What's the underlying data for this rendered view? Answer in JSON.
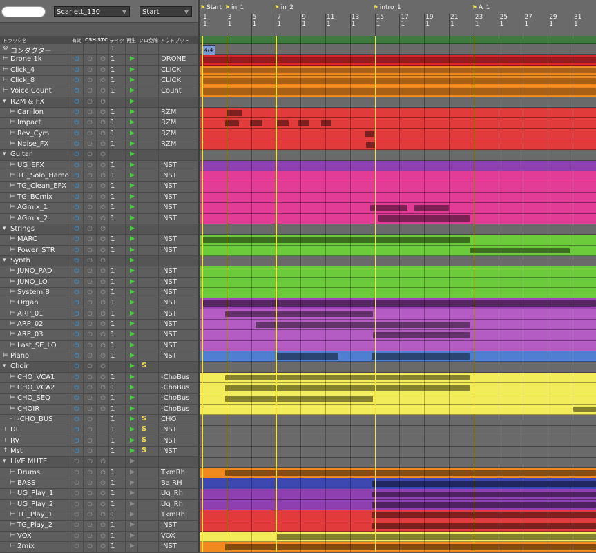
{
  "toolbar": {
    "project": "Scarlett_130",
    "locator": "Start"
  },
  "header": {
    "track_name": "トラック名",
    "enable": "有効",
    "csh": "CSH",
    "stc": "STC",
    "take": "テイク",
    "play": "再生",
    "solo_exempt": "ソロ免除",
    "output": "アウトプット"
  },
  "markers": [
    "Start",
    "in_1",
    "in_2",
    "intro_1",
    "A_1"
  ],
  "bars": [
    "1",
    "3",
    "5",
    "7",
    "9",
    "11",
    "13",
    "15",
    "17",
    "19",
    "21",
    "23",
    "25",
    "27",
    "29",
    "31"
  ],
  "beat": "1",
  "time_signature": "4/4",
  "colors": {
    "marker": "#f5e23a",
    "play": "#43d23a",
    "solo": "#f4e23b",
    "power": "#2ba8ff"
  },
  "tracks": [
    {
      "name": "コンダクター",
      "take": "1",
      "out": "",
      "folder": false,
      "icon": "conductor-icon",
      "pw": "none",
      "play": false,
      "solo": false,
      "color": "#6a6a6a"
    },
    {
      "name": "Drone 1k",
      "take": "1",
      "out": "DRONE",
      "folder": false,
      "icon": "audio-icon",
      "pw": "on",
      "play": true,
      "solo": false,
      "color": "#d9262a"
    },
    {
      "name": "Click_4",
      "take": "1",
      "out": "CLICK",
      "folder": false,
      "icon": "audio-icon",
      "pw": "on",
      "play": true,
      "solo": false,
      "color": "#f08a1f"
    },
    {
      "name": "Click_8",
      "take": "1",
      "out": "CLICK",
      "folder": false,
      "icon": "audio-icon",
      "pw": "on",
      "play": true,
      "solo": false,
      "color": "#f08a1f"
    },
    {
      "name": "Voice Count",
      "take": "1",
      "out": "Count",
      "folder": false,
      "icon": "audio-icon",
      "pw": "on",
      "play": true,
      "solo": false,
      "color": "#f08a1f"
    },
    {
      "name": "RZM & FX",
      "take": "",
      "out": "",
      "folder": true,
      "icon": "folder-icon",
      "pw": "on",
      "play": true,
      "solo": false,
      "color": "#6a6a6a"
    },
    {
      "name": "Carillon",
      "take": "1",
      "out": "RZM",
      "folder": false,
      "icon": "instrument-icon",
      "pw": "on",
      "play": true,
      "solo": false,
      "color": "#e23b3b"
    },
    {
      "name": "Impact",
      "take": "1",
      "out": "RZM",
      "folder": false,
      "icon": "instrument-icon",
      "pw": "on",
      "play": true,
      "solo": false,
      "color": "#e23b3b"
    },
    {
      "name": "Rev_Cym",
      "take": "1",
      "out": "RZM",
      "folder": false,
      "icon": "instrument-icon",
      "pw": "on",
      "play": true,
      "solo": false,
      "color": "#e23b3b"
    },
    {
      "name": "Noise_FX",
      "take": "1",
      "out": "RZM",
      "folder": false,
      "icon": "instrument-icon",
      "pw": "on",
      "play": true,
      "solo": false,
      "color": "#e23b3b"
    },
    {
      "name": "Guitar",
      "take": "",
      "out": "",
      "folder": true,
      "icon": "folder-icon",
      "pw": "on",
      "play": true,
      "solo": false,
      "color": "#6a6a6a"
    },
    {
      "name": "UG_EFX",
      "take": "1",
      "out": "INST",
      "folder": false,
      "icon": "instrument-icon",
      "pw": "on",
      "play": true,
      "solo": false,
      "color": "#8e3fb0"
    },
    {
      "name": "TG_Solo_Hamo",
      "take": "1",
      "out": "INST",
      "folder": false,
      "icon": "instrument-icon",
      "pw": "on",
      "play": true,
      "solo": false,
      "color": "#e23c97"
    },
    {
      "name": "TG_Clean_EFX",
      "take": "1",
      "out": "INST",
      "folder": false,
      "icon": "instrument-icon",
      "pw": "on",
      "play": true,
      "solo": false,
      "color": "#e23c97"
    },
    {
      "name": "TG_BCmix",
      "take": "1",
      "out": "INST",
      "folder": false,
      "icon": "instrument-icon",
      "pw": "on",
      "play": true,
      "solo": false,
      "color": "#e23c97"
    },
    {
      "name": "AGmix_1",
      "take": "1",
      "out": "INST",
      "folder": false,
      "icon": "instrument-icon",
      "pw": "on",
      "play": true,
      "solo": false,
      "color": "#e23c97"
    },
    {
      "name": "AGmix_2",
      "take": "1",
      "out": "INST",
      "folder": false,
      "icon": "instrument-icon",
      "pw": "on",
      "play": true,
      "solo": false,
      "color": "#e23c97"
    },
    {
      "name": "Strings",
      "take": "",
      "out": "",
      "folder": true,
      "icon": "folder-icon",
      "pw": "on",
      "play": true,
      "solo": false,
      "color": "#6a6a6a"
    },
    {
      "name": "MARC",
      "take": "1",
      "out": "INST",
      "folder": false,
      "icon": "instrument-icon",
      "pw": "on",
      "play": true,
      "solo": false,
      "color": "#6ccb3a"
    },
    {
      "name": "Power_STR",
      "take": "1",
      "out": "INST",
      "folder": false,
      "icon": "instrument-icon",
      "pw": "on",
      "play": true,
      "solo": false,
      "color": "#6ccb3a"
    },
    {
      "name": "Synth",
      "take": "",
      "out": "",
      "folder": true,
      "icon": "folder-icon",
      "pw": "on",
      "play": true,
      "solo": false,
      "color": "#6a6a6a"
    },
    {
      "name": "JUNO_PAD",
      "take": "1",
      "out": "INST",
      "folder": false,
      "icon": "instrument-icon",
      "pw": "on",
      "play": true,
      "solo": false,
      "color": "#6ccb3a"
    },
    {
      "name": "JUNO_LO",
      "take": "1",
      "out": "INST",
      "folder": false,
      "icon": "instrument-icon",
      "pw": "on",
      "play": true,
      "solo": false,
      "color": "#6ccb3a"
    },
    {
      "name": "System 8",
      "take": "1",
      "out": "INST",
      "folder": false,
      "icon": "instrument-icon",
      "pw": "on",
      "play": true,
      "solo": false,
      "color": "#6ccb3a"
    },
    {
      "name": "Organ",
      "take": "1",
      "out": "INST",
      "folder": false,
      "icon": "instrument-icon",
      "pw": "on",
      "play": true,
      "solo": false,
      "color": "#9d46b5"
    },
    {
      "name": "ARP_01",
      "take": "1",
      "out": "INST",
      "folder": false,
      "icon": "instrument-icon",
      "pw": "on",
      "play": true,
      "solo": false,
      "color": "#b45cc4"
    },
    {
      "name": "ARP_02",
      "take": "1",
      "out": "INST",
      "folder": false,
      "icon": "instrument-icon",
      "pw": "on",
      "play": true,
      "solo": false,
      "color": "#b45cc4"
    },
    {
      "name": "ARP_03",
      "take": "1",
      "out": "INST",
      "folder": false,
      "icon": "instrument-icon",
      "pw": "on",
      "play": true,
      "solo": false,
      "color": "#b45cc4"
    },
    {
      "name": "Last_SE_LO",
      "take": "1",
      "out": "INST",
      "folder": false,
      "icon": "instrument-icon",
      "pw": "on",
      "play": true,
      "solo": false,
      "color": "#b45cc4"
    },
    {
      "name": "Piano",
      "take": "1",
      "out": "INST",
      "folder": false,
      "icon": "instrument-icon",
      "pw": "on",
      "play": true,
      "solo": false,
      "color": "#4f7fd0"
    },
    {
      "name": "Choir",
      "take": "",
      "out": "",
      "folder": true,
      "icon": "folder-icon",
      "pw": "on",
      "play": true,
      "solo": true,
      "color": "#6a6a6a"
    },
    {
      "name": "CHO_VCA1",
      "take": "1",
      "out": "-ChoBus",
      "folder": false,
      "icon": "instrument-icon",
      "pw": "on",
      "play": true,
      "solo": false,
      "color": "#f2ec5a"
    },
    {
      "name": "CHO_VCA2",
      "take": "1",
      "out": "-ChoBus",
      "folder": false,
      "icon": "instrument-icon",
      "pw": "on",
      "play": true,
      "solo": false,
      "color": "#f2ec5a"
    },
    {
      "name": "CHO_SEQ",
      "take": "1",
      "out": "-ChoBus",
      "folder": false,
      "icon": "instrument-icon",
      "pw": "on",
      "play": true,
      "solo": false,
      "color": "#f2ec5a"
    },
    {
      "name": "CHOIR",
      "take": "1",
      "out": "-ChoBus",
      "folder": false,
      "icon": "instrument-icon",
      "pw": "on",
      "play": true,
      "solo": false,
      "color": "#f2ec5a"
    },
    {
      "name": "-CHO_BUS",
      "take": "1",
      "out": "CHO",
      "folder": false,
      "icon": "bus-icon",
      "pw": "on",
      "play": true,
      "solo": true,
      "color": "#6a6a6a"
    },
    {
      "name": "DL",
      "take": "1",
      "out": "INST",
      "folder": false,
      "icon": "bus-icon",
      "pw": "on",
      "play": true,
      "solo": true,
      "color": "#6a6a6a"
    },
    {
      "name": "RV",
      "take": "1",
      "out": "INST",
      "folder": false,
      "icon": "bus-icon",
      "pw": "on",
      "play": true,
      "solo": true,
      "color": "#6a6a6a"
    },
    {
      "name": "Mst",
      "take": "1",
      "out": "INST",
      "folder": false,
      "icon": "master-icon",
      "pw": "on",
      "play": true,
      "solo": true,
      "color": "#6a6a6a"
    },
    {
      "name": "LIVE MUTE",
      "take": "",
      "out": "",
      "folder": true,
      "icon": "folder-icon",
      "pw": "off",
      "play": false,
      "solo": false,
      "color": "#6a6a6a"
    },
    {
      "name": "Drums",
      "take": "1",
      "out": "TkmRh",
      "folder": false,
      "icon": "audio-icon",
      "pw": "off",
      "play": false,
      "solo": false,
      "color": "#f08a1f"
    },
    {
      "name": "BASS",
      "take": "1",
      "out": "Ba RH",
      "folder": false,
      "icon": "audio-icon",
      "pw": "off",
      "play": false,
      "solo": false,
      "color": "#3d48b0"
    },
    {
      "name": "UG_Play_1",
      "take": "1",
      "out": "Ug_Rh",
      "folder": false,
      "icon": "audio-icon",
      "pw": "off",
      "play": false,
      "solo": false,
      "color": "#8e3fb0"
    },
    {
      "name": "UG_Play_2",
      "take": "1",
      "out": "Ug_Rh",
      "folder": false,
      "icon": "audio-icon",
      "pw": "off",
      "play": false,
      "solo": false,
      "color": "#8e3fb0"
    },
    {
      "name": "TG_Play_1",
      "take": "1",
      "out": "TkmRh",
      "folder": false,
      "icon": "audio-icon",
      "pw": "off",
      "play": false,
      "solo": false,
      "color": "#e23b3b"
    },
    {
      "name": "TG_Play_2",
      "take": "1",
      "out": "INST",
      "folder": false,
      "icon": "audio-icon",
      "pw": "off",
      "play": false,
      "solo": false,
      "color": "#e23b3b"
    },
    {
      "name": "VOX",
      "take": "1",
      "out": "VOX",
      "folder": false,
      "icon": "audio-icon",
      "pw": "off",
      "play": false,
      "solo": false,
      "color": "#f2ec5a"
    },
    {
      "name": "2mix",
      "take": "1",
      "out": "INST",
      "folder": false,
      "icon": "audio-icon",
      "pw": "off",
      "play": false,
      "solo": false,
      "color": "#f08a1f"
    }
  ]
}
